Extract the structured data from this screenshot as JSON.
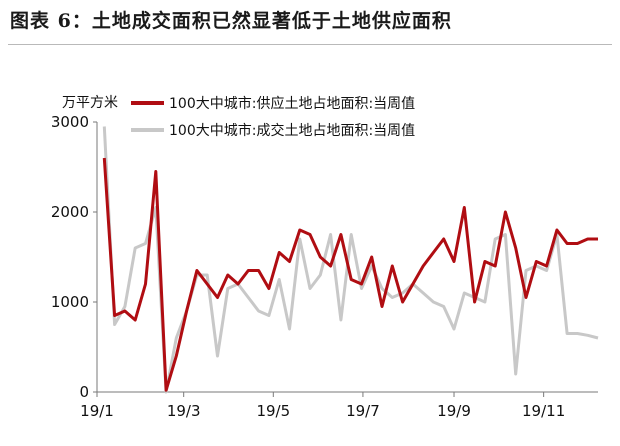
{
  "figure": {
    "title": "图表 6：土地成交面积已然显著低于土地供应面积"
  },
  "chart_data": {
    "type": "line",
    "ylabel": "万平方米",
    "ylim": [
      0,
      3000
    ],
    "yticks": [
      0,
      1000,
      2000,
      3000
    ],
    "xlim": [
      "2019-01-01",
      "2019-12-08"
    ],
    "xticks": [
      {
        "label": "19/1",
        "date": "2019-01-01"
      },
      {
        "label": "19/3",
        "date": "2019-03-01"
      },
      {
        "label": "19/5",
        "date": "2019-05-01"
      },
      {
        "label": "19/7",
        "date": "2019-07-01"
      },
      {
        "label": "19/9",
        "date": "2019-09-01"
      },
      {
        "label": "19/11",
        "date": "2019-11-01"
      }
    ],
    "legend_position": "top",
    "grid": false,
    "x": [
      "2019-01-06",
      "2019-01-13",
      "2019-01-20",
      "2019-01-27",
      "2019-02-03",
      "2019-02-10",
      "2019-02-17",
      "2019-02-24",
      "2019-03-03",
      "2019-03-10",
      "2019-03-17",
      "2019-03-24",
      "2019-03-31",
      "2019-04-07",
      "2019-04-14",
      "2019-04-21",
      "2019-04-28",
      "2019-05-05",
      "2019-05-12",
      "2019-05-19",
      "2019-05-26",
      "2019-06-02",
      "2019-06-09",
      "2019-06-16",
      "2019-06-23",
      "2019-06-30",
      "2019-07-07",
      "2019-07-14",
      "2019-07-21",
      "2019-07-28",
      "2019-08-04",
      "2019-08-11",
      "2019-08-18",
      "2019-08-25",
      "2019-09-01",
      "2019-09-08",
      "2019-09-15",
      "2019-09-22",
      "2019-09-29",
      "2019-10-06",
      "2019-10-13",
      "2019-10-20",
      "2019-10-27",
      "2019-11-03",
      "2019-11-10",
      "2019-11-17",
      "2019-11-24",
      "2019-12-01",
      "2019-12-08"
    ],
    "series": [
      {
        "name": "100大中城市:供应土地占地面积:当周值",
        "color": "#b00d12",
        "values": [
          2600,
          850,
          900,
          800,
          1200,
          2450,
          20,
          400,
          900,
          1350,
          1200,
          1050,
          1300,
          1200,
          1350,
          1350,
          1150,
          1550,
          1450,
          1800,
          1750,
          1500,
          1400,
          1750,
          1250,
          1200,
          1500,
          950,
          1400,
          1000,
          1200,
          1400,
          1550,
          1700,
          1450,
          2050,
          1000,
          1450,
          1400,
          2000,
          1600,
          1050,
          1450,
          1400,
          1800,
          1650,
          1650,
          1700,
          1700
        ]
      },
      {
        "name": "100大中城市:成交土地占地面积:当周值",
        "color": "#c8c8c8",
        "values": [
          2950,
          750,
          950,
          1600,
          1650,
          2050,
          0,
          600,
          900,
          1300,
          1300,
          400,
          1150,
          1200,
          1050,
          900,
          850,
          1250,
          700,
          1700,
          1150,
          1300,
          1750,
          800,
          1750,
          1150,
          1400,
          1150,
          1050,
          1100,
          1200,
          1100,
          1000,
          950,
          700,
          1100,
          1050,
          1000,
          1700,
          1750,
          200,
          1350,
          1400,
          1350,
          1750,
          650,
          650,
          630,
          600
        ]
      }
    ]
  }
}
